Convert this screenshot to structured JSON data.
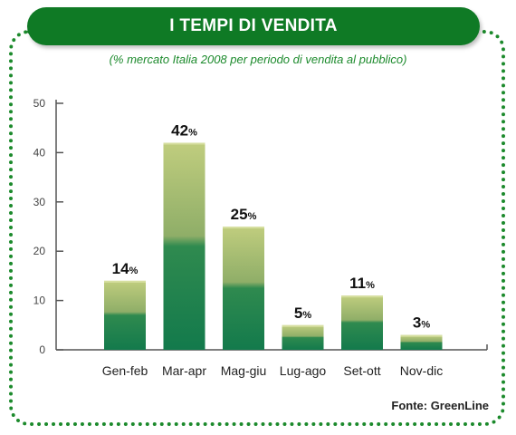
{
  "header": {
    "title": "I TEMPI DI VENDITA"
  },
  "subtitle": "(% mercato Italia 2008 per periodo di vendita al pubblico)",
  "source": "Fonte: GreenLine",
  "colors": {
    "brand": "#0f7a25",
    "bar_top": "#b9c873",
    "bar_bottom": "#157a4d",
    "border": "#1c8a2c"
  },
  "chart_data": {
    "type": "bar",
    "title": "I TEMPI DI VENDITA",
    "subtitle": "(% mercato Italia 2008 per periodo di vendita al pubblico)",
    "categories": [
      "Gen-feb",
      "Mar-apr",
      "Mag-giu",
      "Lug-ago",
      "Set-ott",
      "Nov-dic"
    ],
    "values": [
      14,
      42,
      25,
      5,
      11,
      3
    ],
    "value_unit": "%",
    "yticks": [
      0,
      10,
      20,
      30,
      40,
      50
    ],
    "ylim": [
      0,
      50
    ],
    "xlabel": "",
    "ylabel": "",
    "grid": false,
    "legend": "none"
  }
}
